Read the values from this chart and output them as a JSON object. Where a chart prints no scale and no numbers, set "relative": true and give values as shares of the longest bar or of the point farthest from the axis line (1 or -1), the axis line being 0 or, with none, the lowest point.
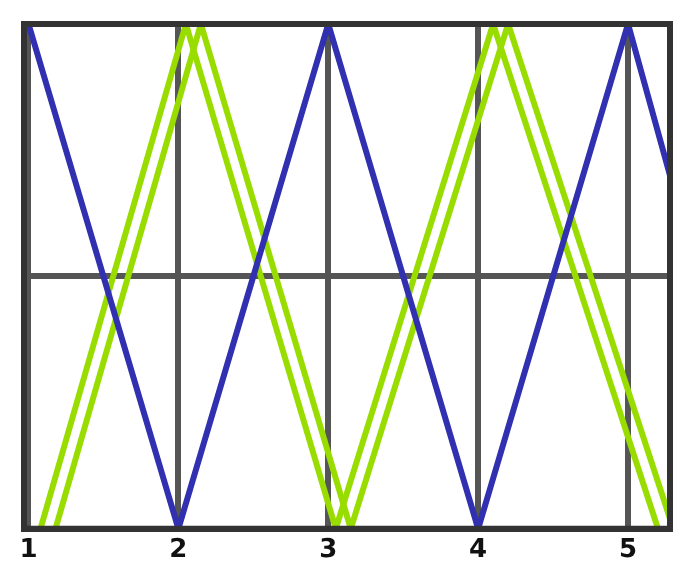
{
  "chart_data": {
    "type": "line",
    "relative": true,
    "xlim": [
      0.97,
      5.28
    ],
    "xticks": [
      1,
      2,
      3,
      4,
      5
    ],
    "grid": true,
    "legend": false,
    "marker": "none",
    "line_style": "solid",
    "series": [
      {
        "color": "#3030b0",
        "x": [
          1,
          2,
          3,
          4,
          5,
          5.28
        ],
        "values": [
          1,
          0,
          1,
          0,
          1,
          0.7
        ]
      },
      {
        "color": "#99dd00",
        "x": [
          1.08,
          2.05,
          3.05,
          4.1,
          5.2
        ],
        "values": [
          0,
          1,
          0,
          1,
          0
        ]
      },
      {
        "color": "#99dd00",
        "x": [
          1.18,
          2.15,
          3.15,
          4.2,
          5.28
        ],
        "values": [
          0,
          1,
          0,
          1,
          0.02
        ]
      }
    ]
  }
}
